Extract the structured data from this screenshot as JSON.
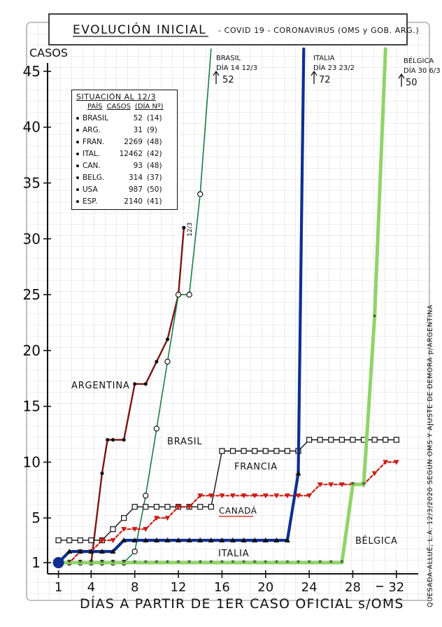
{
  "title": "EVOLUCIÓN INICIAL",
  "subtitle": "- COVID 19 - CORONAVIRUS (OMS y GOB. ARG.)",
  "ylabel": "CASOS",
  "xlabel": "DÍAS A PARTIR DE 1ER CASO OFICIAL s/OMS",
  "side_note": "QUESADA-ALLUÉ, L.A. 12/3/2020 SEGÚN OMS Y AJUSTE DE DEMORA p/ARGENTINA",
  "legend": {
    "title": "SITUACIÓN AL 12/3",
    "col_country": "PAÍS",
    "col_cases": "CASOS",
    "col_day": "(DÍA Nº)",
    "rows": [
      {
        "country": "BRASIL",
        "cases": "52",
        "day": "(14)"
      },
      {
        "country": "ARG.",
        "cases": "31",
        "day": "(9)"
      },
      {
        "country": "FRAN.",
        "cases": "2269",
        "day": "(48)"
      },
      {
        "country": "ITAL.",
        "cases": "12462",
        "day": "(42)"
      },
      {
        "country": "CAN.",
        "cases": "93",
        "day": "(48)"
      },
      {
        "country": "BELG.",
        "cases": "314",
        "day": "(37)"
      },
      {
        "country": "USA",
        "cases": "987",
        "day": "(50)"
      },
      {
        "country": "ESP.",
        "cases": "2140",
        "day": "(41)"
      }
    ]
  },
  "annotations": {
    "brasil_top": [
      "BRASIL",
      "DÍA 14 12/3",
      "52"
    ],
    "italia_top": [
      "ITALIA",
      "DÍA 23 23/2",
      "72"
    ],
    "belgica_top": [
      "BÉLGICA",
      "DÍA 30 6/3",
      "50"
    ],
    "arg_end": "12/3"
  },
  "series_labels": {
    "argentina": "ARGENTINA",
    "brasil": "BRASIL",
    "francia": "FRANCIA",
    "canada": "CANADÁ",
    "italia": "ITALIA",
    "belgica": "BÉLGICA"
  },
  "chart_data": {
    "type": "line",
    "xlabel": "DÍAS A PARTIR DE 1ER CASO OFICIAL s/OMS",
    "ylabel": "CASOS",
    "x_ticks": [
      1,
      4,
      8,
      12,
      16,
      20,
      24,
      28,
      32
    ],
    "y_ticks": [
      1,
      5,
      10,
      15,
      20,
      25,
      30,
      35,
      40,
      45
    ],
    "xlim": [
      0,
      34
    ],
    "ylim": [
      0,
      47
    ],
    "series": [
      {
        "name": "ARGENTINA",
        "color": "#7a1512",
        "marker": "dot",
        "points": [
          [
            1,
            1
          ],
          [
            2,
            1
          ],
          [
            3,
            1
          ],
          [
            4,
            1
          ],
          [
            5,
            9
          ],
          [
            5.5,
            12
          ],
          [
            6,
            12
          ],
          [
            7,
            12
          ],
          [
            8,
            17
          ],
          [
            9,
            17
          ],
          [
            10,
            19
          ],
          [
            11,
            21
          ],
          [
            12,
            25
          ],
          [
            12.5,
            31
          ]
        ]
      },
      {
        "name": "BRASIL",
        "color": "#1d7a45",
        "marker": "circle",
        "points": [
          [
            1,
            1
          ],
          [
            2,
            1
          ],
          [
            3,
            1
          ],
          [
            4,
            1
          ],
          [
            5,
            1
          ],
          [
            6,
            1
          ],
          [
            7,
            1
          ],
          [
            8,
            2
          ],
          [
            9,
            7
          ],
          [
            10,
            13
          ],
          [
            11,
            19
          ],
          [
            12,
            25
          ],
          [
            13,
            25
          ],
          [
            14,
            34
          ],
          [
            15,
            52
          ]
        ]
      },
      {
        "name": "FRANCIA",
        "color": "#111111",
        "marker": "square",
        "points": [
          [
            1,
            3
          ],
          [
            2,
            3
          ],
          [
            3,
            3
          ],
          [
            4,
            3
          ],
          [
            5,
            3
          ],
          [
            6,
            4
          ],
          [
            7,
            5
          ],
          [
            8,
            6
          ],
          [
            9,
            6
          ],
          [
            10,
            6
          ],
          [
            11,
            6
          ],
          [
            12,
            6
          ],
          [
            13,
            6
          ],
          [
            14,
            6
          ],
          [
            15,
            6
          ],
          [
            16,
            11
          ],
          [
            17,
            11
          ],
          [
            18,
            11
          ],
          [
            19,
            11
          ],
          [
            20,
            11
          ],
          [
            21,
            11
          ],
          [
            22,
            11
          ],
          [
            23,
            11
          ],
          [
            24,
            12
          ],
          [
            25,
            12
          ],
          [
            26,
            12
          ],
          [
            27,
            12
          ],
          [
            28,
            12
          ],
          [
            29,
            12
          ],
          [
            30,
            12
          ],
          [
            31,
            12
          ],
          [
            32,
            12
          ]
        ]
      },
      {
        "name": "CANADÁ",
        "color": "#cc1b14",
        "marker": "triangle-down",
        "points": [
          [
            1,
            1
          ],
          [
            2,
            1
          ],
          [
            3,
            2
          ],
          [
            4,
            2
          ],
          [
            5,
            3
          ],
          [
            6,
            3
          ],
          [
            7,
            4
          ],
          [
            8,
            4
          ],
          [
            9,
            4
          ],
          [
            10,
            5
          ],
          [
            11,
            5
          ],
          [
            12,
            6
          ],
          [
            13,
            6
          ],
          [
            14,
            7
          ],
          [
            15,
            7
          ],
          [
            16,
            7
          ],
          [
            17,
            7
          ],
          [
            18,
            7
          ],
          [
            19,
            7
          ],
          [
            20,
            7
          ],
          [
            21,
            7
          ],
          [
            22,
            7
          ],
          [
            23,
            7
          ],
          [
            24,
            7
          ],
          [
            25,
            8
          ],
          [
            26,
            8
          ],
          [
            27,
            8
          ],
          [
            28,
            8
          ],
          [
            29,
            8
          ],
          [
            30,
            9
          ],
          [
            31,
            10
          ],
          [
            32,
            10
          ]
        ]
      },
      {
        "name": "ITALIA",
        "color": "#0f2f8f",
        "marker": "triangle-up",
        "points": [
          [
            1,
            1
          ],
          [
            2,
            2
          ],
          [
            3,
            2
          ],
          [
            4,
            2
          ],
          [
            5,
            2
          ],
          [
            6,
            2
          ],
          [
            7,
            3
          ],
          [
            8,
            3
          ],
          [
            9,
            3
          ],
          [
            10,
            3
          ],
          [
            11,
            3
          ],
          [
            12,
            3
          ],
          [
            13,
            3
          ],
          [
            14,
            3
          ],
          [
            15,
            3
          ],
          [
            16,
            3
          ],
          [
            17,
            3
          ],
          [
            18,
            3
          ],
          [
            19,
            3
          ],
          [
            20,
            3
          ],
          [
            21,
            3
          ],
          [
            22,
            3
          ],
          [
            23,
            9
          ],
          [
            23.5,
            72
          ]
        ]
      },
      {
        "name": "BÉLGICA",
        "color": "#8fd468",
        "marker": "star",
        "points": [
          [
            1,
            1
          ],
          [
            2,
            1
          ],
          [
            3,
            1
          ],
          [
            4,
            1
          ],
          [
            5,
            1
          ],
          [
            6,
            1
          ],
          [
            7,
            1
          ],
          [
            8,
            1
          ],
          [
            9,
            1
          ],
          [
            10,
            1
          ],
          [
            11,
            1
          ],
          [
            12,
            1
          ],
          [
            13,
            1
          ],
          [
            14,
            1
          ],
          [
            15,
            1
          ],
          [
            16,
            1
          ],
          [
            17,
            1
          ],
          [
            18,
            1
          ],
          [
            19,
            1
          ],
          [
            20,
            1
          ],
          [
            21,
            1
          ],
          [
            22,
            1
          ],
          [
            23,
            1
          ],
          [
            24,
            1
          ],
          [
            25,
            1
          ],
          [
            26,
            1
          ],
          [
            27,
            1
          ],
          [
            28,
            8
          ],
          [
            29,
            8
          ],
          [
            30,
            23
          ],
          [
            31,
            50
          ]
        ]
      }
    ]
  }
}
